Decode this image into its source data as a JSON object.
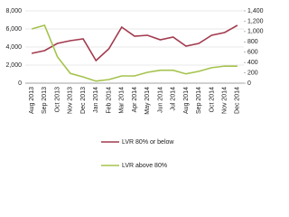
{
  "chart_data": {
    "type": "line",
    "categories": [
      "Aug 2013",
      "Sep 2013",
      "Oct 2013",
      "Nov 2013",
      "Dec 2013",
      "Jan 2014",
      "Feb 2014",
      "Mar 2014",
      "Apr 2014",
      "May 2014",
      "Jun 2014",
      "Jul 2014",
      "Aug 2014",
      "Sep 2014",
      "Oct 2014",
      "Nov 2014",
      "Dec 2014"
    ],
    "series": [
      {
        "name": "LVR 80% or below",
        "color": "#a23a4e",
        "values": [
          3300,
          3600,
          4400,
          4700,
          4900,
          2500,
          3800,
          6200,
          5200,
          5300,
          4800,
          5100,
          4100,
          4400,
          5300,
          5600,
          6400
        ]
      },
      {
        "name": "LVR above 80%",
        "color": "#a5c34d",
        "axis": "y2",
        "values": [
          1050,
          1120,
          510,
          190,
          120,
          40,
          70,
          140,
          140,
          210,
          250,
          250,
          180,
          230,
          300,
          330,
          330
        ]
      }
    ],
    "ylim": [
      0,
      8000
    ],
    "yticks": [
      0,
      {
        "value": 2000,
        "label": "2,000"
      },
      {
        "value": 4000,
        "label": "4,000"
      },
      {
        "value": 6000,
        "label": "6,000"
      },
      {
        "value": 8000,
        "label": "8,000"
      }
    ],
    "y2lim": [
      0,
      1400
    ],
    "y2ticks": [
      0,
      200,
      400,
      600,
      800,
      {
        "value": 1000,
        "label": "1,000"
      },
      {
        "value": 1200,
        "label": "1,200"
      },
      {
        "value": 1400,
        "label": "1,400"
      }
    ],
    "grid": true,
    "legend": "bottom"
  }
}
